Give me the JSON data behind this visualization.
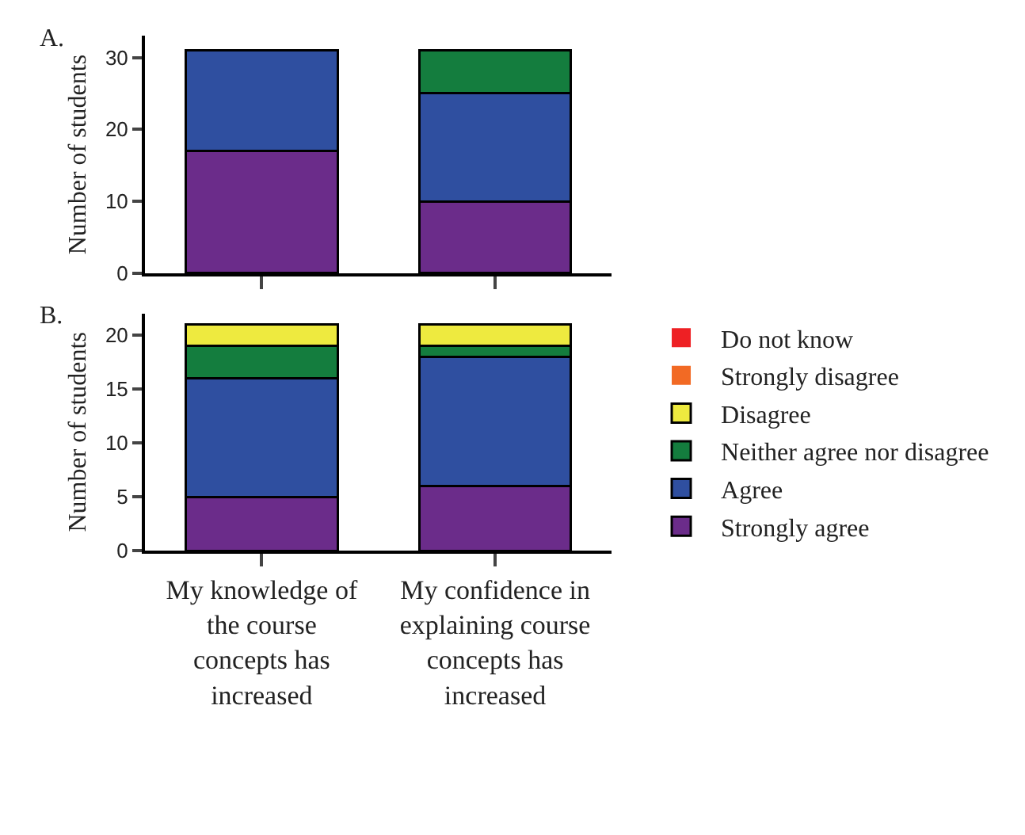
{
  "chart_data": [
    {
      "type": "bar",
      "title": "A.",
      "ylabel": "Number of students",
      "stacked": true,
      "legend": false,
      "tick_labels": "y",
      "categories": [
        null,
        null
      ],
      "ylim": [
        0,
        33
      ],
      "yticks": [
        0,
        10,
        20,
        30
      ],
      "series": [
        {
          "color": "#6b2c8a",
          "values": [
            17,
            10
          ]
        },
        {
          "color": "#2f4fa0",
          "values": [
            14,
            15
          ]
        },
        {
          "color": "#147d3e",
          "values": [
            0,
            6
          ]
        }
      ]
    },
    {
      "type": "bar",
      "title": "B.",
      "ylabel": "Number of students",
      "stacked": true,
      "legend": "right",
      "categories": [
        "My knowledge of the course concepts has increased",
        "My confidence in explaining course concepts has increased"
      ],
      "ylim": [
        0,
        22
      ],
      "yticks": [
        0,
        5,
        10,
        15,
        20
      ],
      "series": [
        {
          "name": "Strongly agree",
          "color": "#6b2c8a",
          "values": [
            5,
            6
          ]
        },
        {
          "name": "Agree",
          "color": "#2f4fa0",
          "values": [
            11,
            12
          ]
        },
        {
          "name": "Neither agree nor disagree",
          "color": "#147d3e",
          "values": [
            3,
            1
          ]
        },
        {
          "name": "Disagree",
          "color": "#eeea3f",
          "values": [
            2,
            2
          ]
        },
        {
          "name": "Strongly disagree",
          "color": "#f26a24",
          "values": [
            0,
            0
          ]
        },
        {
          "name": "Do not know",
          "color": "#ee2024",
          "values": [
            0,
            0
          ]
        }
      ]
    }
  ]
}
